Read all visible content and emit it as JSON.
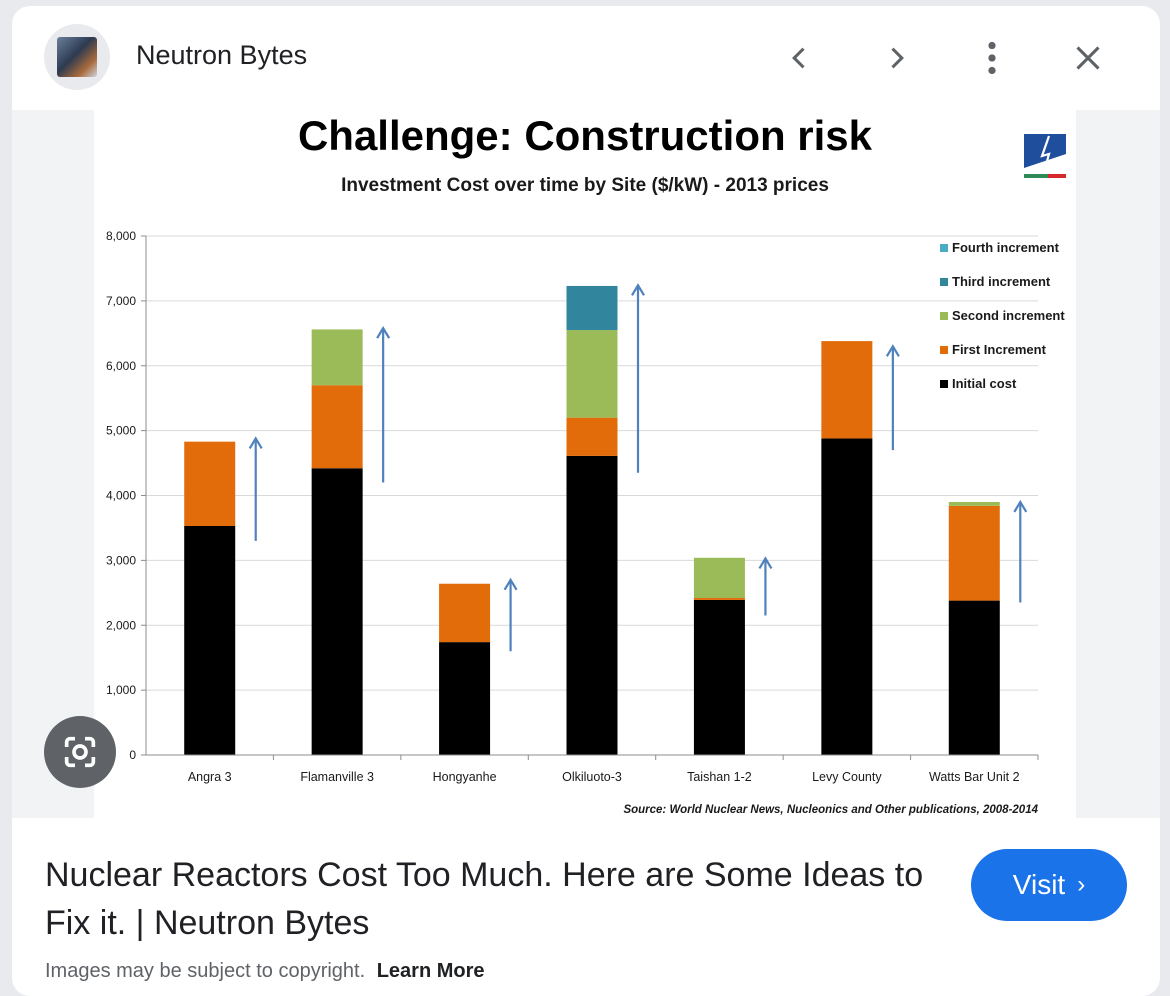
{
  "header": {
    "site_name": "Neutron Bytes",
    "icons": [
      "chevron-left-icon",
      "chevron-right-icon",
      "more-vert-icon",
      "close-icon"
    ]
  },
  "lens_icon": "google-lens-icon",
  "result": {
    "title": "Nuclear Reactors Cost Too Much. Here are Some Ideas to Fix it. | Neutron Bytes",
    "visit_label": "Visit",
    "copyright_text": "Images may be subject to copyright.",
    "learn_more": "Learn More"
  },
  "chart_data": {
    "type": "bar",
    "stacked": true,
    "title": "Challenge: Construction risk",
    "subtitle": "Investment Cost over time by Site ($/kW) - 2013 prices",
    "source": "Source: World Nuclear News, Nucleonics and Other publications,  2008-2014",
    "categories": [
      "Angra 3",
      "Flamanville 3",
      "Hongyanhe",
      "Olkiluoto-3",
      "Taishan 1-2",
      "Levy County",
      "Watts Bar Unit 2"
    ],
    "series": [
      {
        "name": "Initial cost",
        "color": "#000000",
        "values": [
          3530,
          4420,
          1740,
          4610,
          2390,
          4880,
          2380
        ]
      },
      {
        "name": "First Increment",
        "color": "#e36c0a",
        "values": [
          1300,
          1280,
          900,
          590,
          30,
          1500,
          1460
        ]
      },
      {
        "name": "Second increment",
        "color": "#9bbb59",
        "values": [
          0,
          860,
          0,
          1350,
          620,
          0,
          60
        ]
      },
      {
        "name": "Third increment",
        "color": "#31859c",
        "values": [
          0,
          0,
          0,
          680,
          0,
          0,
          0
        ]
      },
      {
        "name": "Fourth increment",
        "color": "#4bacc6",
        "values": [
          0,
          0,
          0,
          0,
          0,
          0,
          0
        ]
      }
    ],
    "legend_order": [
      "Fourth increment",
      "Third increment",
      "Second increment",
      "First Increment",
      "Initial cost"
    ],
    "yticks": [
      "0",
      "1,000",
      "2,000",
      "3,000",
      "4,000",
      "5,000",
      "6,000",
      "7,000",
      "8,000"
    ],
    "ylim": [
      0,
      8000
    ],
    "grid": true,
    "legend_position": "top-right",
    "arrows": {
      "color": "#4f81bd",
      "ranges": [
        [
          3300,
          4880
        ],
        [
          4200,
          6580
        ],
        [
          1600,
          2700
        ],
        [
          4350,
          7240
        ],
        [
          2150,
          3030
        ],
        [
          4700,
          6300
        ],
        [
          2350,
          3900
        ]
      ]
    }
  }
}
